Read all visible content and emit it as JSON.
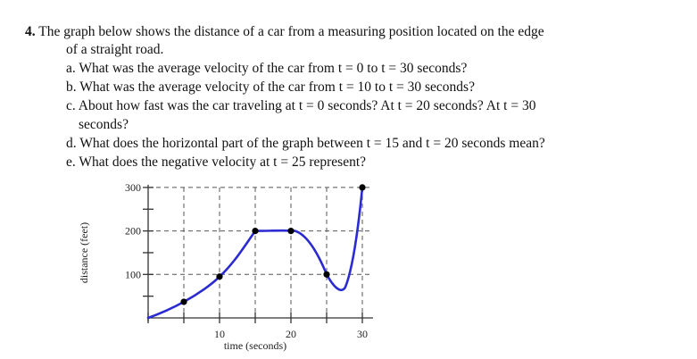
{
  "problem": {
    "number": "4.",
    "intro_line1": "The graph below shows the distance of a car from a measuring position located on the edge",
    "intro_line2": "of a straight road.",
    "questions": [
      {
        "label": "a.",
        "text": "What was the average velocity of the car from t = 0 to t = 30 seconds?"
      },
      {
        "label": "b.",
        "text": "What was the average velocity of the car from t = 10 to t = 30 seconds?"
      },
      {
        "label": "c.",
        "text": "About how fast was the car traveling at t = 0 seconds? At t = 20 seconds? At t = 30",
        "continuation": "seconds?"
      },
      {
        "label": "d.",
        "text": "What does the horizontal part of the graph between t = 15 and t = 20 seconds mean?"
      },
      {
        "label": "e.",
        "text": "What does the negative velocity at t = 25 represent?"
      }
    ]
  },
  "chart_data": {
    "type": "line",
    "title": "",
    "xlabel": "time  (seconds)",
    "ylabel": "distance  (feet)",
    "xlim": [
      0,
      31
    ],
    "ylim": [
      0,
      300
    ],
    "x_ticks": [
      0,
      5,
      10,
      15,
      20,
      25,
      30
    ],
    "x_tick_labels": [
      "",
      "",
      "10",
      "",
      "20",
      "",
      "30"
    ],
    "y_ticks": [
      0,
      50,
      100,
      150,
      200,
      250,
      300
    ],
    "y_tick_labels": [
      "",
      "",
      "100",
      "",
      "200",
      "",
      "300"
    ],
    "grid": "dashed",
    "marked_points": [
      {
        "t": 5,
        "d": 37
      },
      {
        "t": 10,
        "d": 95
      },
      {
        "t": 15,
        "d": 200
      },
      {
        "t": 20,
        "d": 200
      },
      {
        "t": 25,
        "d": 100
      },
      {
        "t": 30,
        "d": 300
      }
    ],
    "curve": {
      "t": [
        0,
        5,
        10,
        15,
        20,
        25,
        27,
        30
      ],
      "d": [
        0,
        37,
        95,
        200,
        200,
        100,
        65,
        300
      ],
      "local_min": {
        "t": 27,
        "d": 65
      }
    },
    "line_color": "#2b2bd1",
    "point_color": "#000000"
  }
}
